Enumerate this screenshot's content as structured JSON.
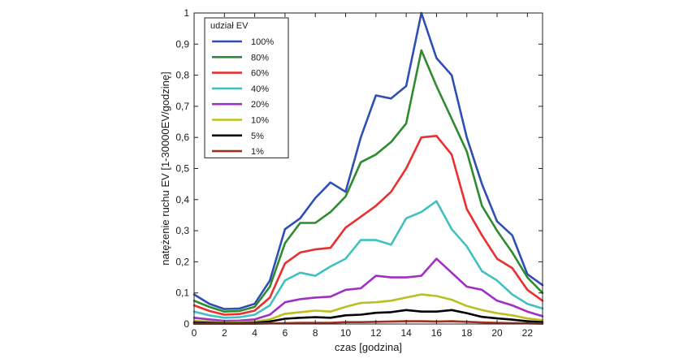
{
  "chart_data": {
    "type": "line",
    "xlabel": "czas [godzina]",
    "ylabel": "natężenie ruchu EV [1-30000EV/godzinę]",
    "xlim": [
      0,
      23
    ],
    "ylim": [
      0,
      1
    ],
    "xticks": [
      0,
      2,
      4,
      6,
      8,
      10,
      12,
      14,
      16,
      18,
      20,
      22
    ],
    "xtick_labels": [
      "0",
      "2",
      "4",
      "6",
      "8",
      "10",
      "12",
      "14",
      "16",
      "18",
      "20",
      "22"
    ],
    "yticks": [
      0,
      0.1,
      0.2,
      0.3,
      0.4,
      0.5,
      0.6,
      0.7,
      0.8,
      0.9,
      1
    ],
    "ytick_labels": [
      "0",
      "0,1",
      "0,2",
      "0,3",
      "0,4",
      "0,5",
      "0,6",
      "0,7",
      "0,8",
      "0,9",
      "1"
    ],
    "grid": false,
    "legend": {
      "title": "udział EV",
      "position": "top-left"
    },
    "x": [
      0,
      1,
      2,
      3,
      4,
      5,
      6,
      7,
      8,
      9,
      10,
      11,
      12,
      13,
      14,
      15,
      16,
      17,
      18,
      19,
      20,
      21,
      22,
      23
    ],
    "series": [
      {
        "name": "100%",
        "color": "#2f4fb4",
        "values": [
          0.095,
          0.065,
          0.048,
          0.05,
          0.065,
          0.14,
          0.305,
          0.34,
          0.405,
          0.455,
          0.425,
          0.6,
          0.735,
          0.725,
          0.765,
          1.0,
          0.855,
          0.8,
          0.6,
          0.45,
          0.33,
          0.285,
          0.16,
          0.125
        ]
      },
      {
        "name": "80%",
        "color": "#2e8b2e",
        "values": [
          0.075,
          0.055,
          0.04,
          0.042,
          0.055,
          0.12,
          0.26,
          0.325,
          0.325,
          0.36,
          0.41,
          0.52,
          0.545,
          0.585,
          0.645,
          0.88,
          0.765,
          0.66,
          0.555,
          0.38,
          0.3,
          0.23,
          0.15,
          0.1
        ]
      },
      {
        "name": "60%",
        "color": "#e83030",
        "values": [
          0.06,
          0.042,
          0.03,
          0.032,
          0.043,
          0.085,
          0.195,
          0.23,
          0.24,
          0.245,
          0.31,
          0.345,
          0.38,
          0.425,
          0.5,
          0.6,
          0.605,
          0.545,
          0.37,
          0.285,
          0.21,
          0.18,
          0.11,
          0.075
        ]
      },
      {
        "name": "40%",
        "color": "#40c0c0",
        "values": [
          0.04,
          0.028,
          0.02,
          0.022,
          0.03,
          0.06,
          0.14,
          0.165,
          0.155,
          0.185,
          0.21,
          0.27,
          0.27,
          0.255,
          0.34,
          0.36,
          0.395,
          0.305,
          0.25,
          0.17,
          0.14,
          0.095,
          0.065,
          0.05
        ]
      },
      {
        "name": "20%",
        "color": "#a030c0",
        "values": [
          0.02,
          0.015,
          0.01,
          0.011,
          0.015,
          0.03,
          0.07,
          0.08,
          0.085,
          0.088,
          0.11,
          0.115,
          0.155,
          0.15,
          0.15,
          0.155,
          0.21,
          0.165,
          0.12,
          0.11,
          0.075,
          0.06,
          0.04,
          0.025
        ]
      },
      {
        "name": "10%",
        "color": "#b8c020",
        "values": [
          0.01,
          0.008,
          0.005,
          0.006,
          0.008,
          0.015,
          0.033,
          0.038,
          0.043,
          0.04,
          0.055,
          0.068,
          0.07,
          0.075,
          0.085,
          0.095,
          0.09,
          0.078,
          0.058,
          0.045,
          0.035,
          0.028,
          0.018,
          0.012
        ]
      },
      {
        "name": "5%",
        "color": "#000000",
        "values": [
          0.005,
          0.004,
          0.003,
          0.003,
          0.004,
          0.008,
          0.017,
          0.02,
          0.022,
          0.02,
          0.028,
          0.03,
          0.036,
          0.038,
          0.045,
          0.04,
          0.04,
          0.045,
          0.035,
          0.023,
          0.018,
          0.014,
          0.009,
          0.006
        ]
      },
      {
        "name": "1%",
        "color": "#a03020",
        "values": [
          0.001,
          0.001,
          0.001,
          0.001,
          0.001,
          0.002,
          0.003,
          0.004,
          0.004,
          0.004,
          0.006,
          0.006,
          0.007,
          0.008,
          0.009,
          0.009,
          0.008,
          0.009,
          0.007,
          0.005,
          0.004,
          0.003,
          0.002,
          0.001
        ]
      }
    ]
  }
}
